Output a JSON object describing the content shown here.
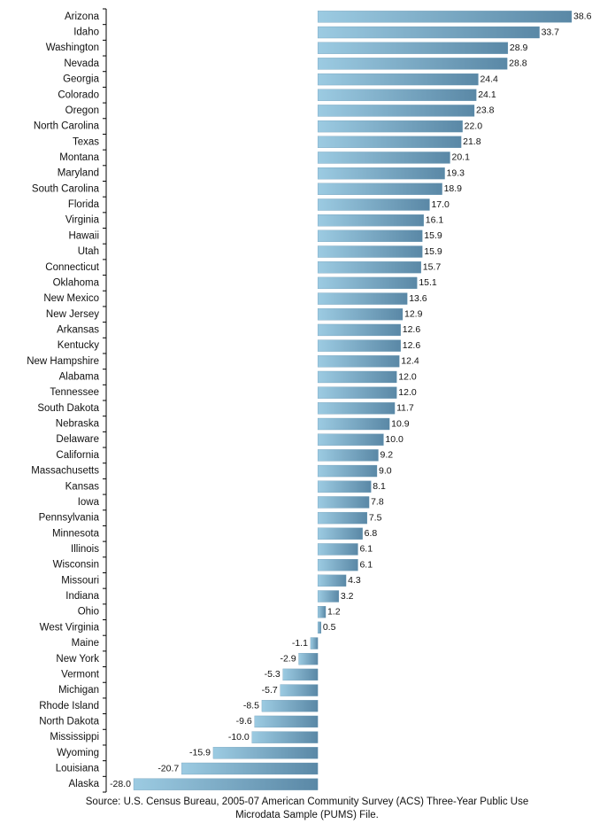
{
  "chart_data": {
    "type": "hbar",
    "categories": [
      "Arizona",
      "Idaho",
      "Washington",
      "Nevada",
      "Georgia",
      "Colorado",
      "Oregon",
      "North Carolina",
      "Texas",
      "Montana",
      "Maryland",
      "South Carolina",
      "Florida",
      "Virginia",
      "Hawaii",
      "Utah",
      "Connecticut",
      "Oklahoma",
      "New Mexico",
      "New Jersey",
      "Arkansas",
      "Kentucky",
      "New Hampshire",
      "Alabama",
      "Tennessee",
      "South Dakota",
      "Nebraska",
      "Delaware",
      "California",
      "Massachusetts",
      "Kansas",
      "Iowa",
      "Pennsylvania",
      "Minnesota",
      "Illinois",
      "Wisconsin",
      "Missouri",
      "Indiana",
      "Ohio",
      "West Virginia",
      "Maine",
      "New York",
      "Vermont",
      "Michigan",
      "Rhode Island",
      "North Dakota",
      "Mississippi",
      "Wyoming",
      "Louisiana",
      "Alaska"
    ],
    "values": [
      38.6,
      33.7,
      28.9,
      28.8,
      24.4,
      24.1,
      23.8,
      22,
      21.8,
      20.1,
      19.3,
      18.9,
      17,
      16.1,
      15.9,
      15.9,
      15.7,
      15.1,
      13.6,
      12.9,
      12.6,
      12.6,
      12.4,
      12,
      12,
      11.7,
      10.9,
      10,
      9.2,
      9,
      8.1,
      7.8,
      7.5,
      6.8,
      6.1,
      6.1,
      4.3,
      3.2,
      1.2,
      0.5,
      -1.1,
      -2.9,
      -5.3,
      -5.7,
      -8.5,
      -9.6,
      -10,
      -15.9,
      -20.7,
      -28
    ],
    "value_labels": [
      "38.6",
      "33.7",
      "28.9",
      "28.8",
      "24.4",
      "24.1",
      "23.8",
      "22.0",
      "21.8",
      "20.1",
      "19.3",
      "18.9",
      "17.0",
      "16.1",
      "15.9",
      "15.9",
      "15.7",
      "15.1",
      "13.6",
      "12.9",
      "12.6",
      "12.6",
      "12.4",
      "12.0",
      "12.0",
      "11.7",
      "10.9",
      "10.0",
      "9.2",
      "9.0",
      "8.1",
      "7.8",
      "7.5",
      "6.8",
      "6.1",
      "6.1",
      "4.3",
      "3.2",
      "1.2",
      "0.5",
      "-1.1",
      "-2.9",
      "-5.3",
      "-5.7",
      "-8.5",
      "-9.6",
      "-10.0",
      "-15.9",
      "-20.7",
      "-28.0"
    ],
    "color": "#5f90ae",
    "source": [
      "Source: U.S. Census Bureau, 2005-07 American Community Survey (ACS) Three-Year Public Use",
      "Microdata Sample (PUMS) File."
    ]
  }
}
